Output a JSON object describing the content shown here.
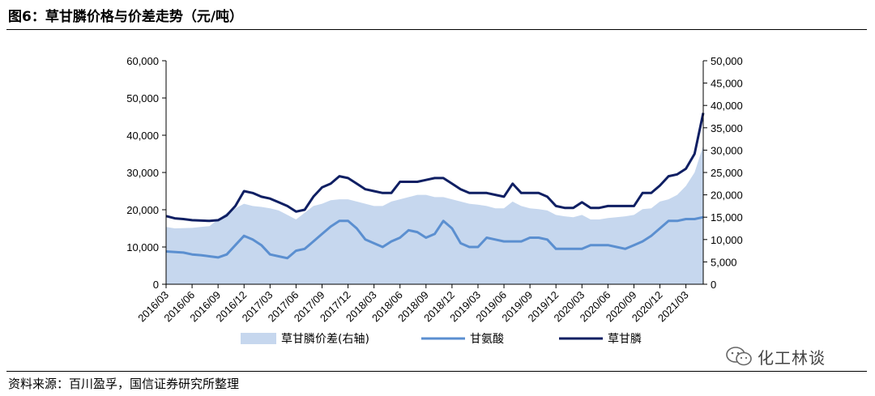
{
  "figure": {
    "title": "图6：草甘膦价格与价差走势（元/吨）",
    "source": "资料来源：百川盈孚，国信证券研究所整理",
    "watermark": "化工林谈"
  },
  "colors": {
    "spread_fill": "#c6d7ee",
    "glyphosine_line": "#5b8fd0",
    "glyphosate_line": "#0f1f63"
  },
  "chart_data": {
    "type": "line",
    "title": "草甘膦价格与价差走势（元/吨）",
    "x_tick_labels": [
      "2016/03",
      "2016/06",
      "2016/09",
      "2016/12",
      "2017/03",
      "2017/06",
      "2017/09",
      "2017/12",
      "2018/03",
      "2018/06",
      "2018/09",
      "2018/12",
      "2019/03",
      "2019/06",
      "2019/09",
      "2019/12",
      "2020/03",
      "2020/06",
      "2020/09",
      "2020/12",
      "2021/03"
    ],
    "x_range": [
      "2016-03",
      "2021-05"
    ],
    "y_left": {
      "min": 0,
      "max": 60000,
      "ticks": [
        "0",
        "10,000",
        "20,000",
        "30,000",
        "40,000",
        "50,000",
        "60,000"
      ]
    },
    "y_right": {
      "min": 0,
      "max": 50000,
      "ticks": [
        "0",
        "5,000",
        "10,000",
        "15,000",
        "20,000",
        "25,000",
        "30,000",
        "35,000",
        "40,000",
        "45,000",
        "50,000"
      ]
    },
    "grid": false,
    "legend_position": "bottom",
    "series": [
      {
        "name": "草甘膦价差(右轴)",
        "kind": "area",
        "axis": "right",
        "points": [
          [
            "2016-03",
            12800
          ],
          [
            "2016-04",
            12500
          ],
          [
            "2016-06",
            12600
          ],
          [
            "2016-08",
            13000
          ],
          [
            "2016-09",
            14500
          ],
          [
            "2016-10",
            16000
          ],
          [
            "2016-11",
            17000
          ],
          [
            "2016-12",
            18000
          ],
          [
            "2017-01",
            17500
          ],
          [
            "2017-02",
            17300
          ],
          [
            "2017-03",
            17000
          ],
          [
            "2017-04",
            16500
          ],
          [
            "2017-05",
            15500
          ],
          [
            "2017-06",
            14500
          ],
          [
            "2017-07",
            16000
          ],
          [
            "2017-08",
            17500
          ],
          [
            "2017-09",
            18000
          ],
          [
            "2017-10",
            18800
          ],
          [
            "2017-11",
            19000
          ],
          [
            "2017-12",
            19000
          ],
          [
            "2018-01",
            18500
          ],
          [
            "2018-02",
            18000
          ],
          [
            "2018-03",
            17500
          ],
          [
            "2018-04",
            17500
          ],
          [
            "2018-05",
            18500
          ],
          [
            "2018-06",
            19000
          ],
          [
            "2018-07",
            19500
          ],
          [
            "2018-08",
            20000
          ],
          [
            "2018-09",
            20000
          ],
          [
            "2018-10",
            19500
          ],
          [
            "2018-11",
            19500
          ],
          [
            "2018-12",
            19000
          ],
          [
            "2019-01",
            18500
          ],
          [
            "2019-02",
            18000
          ],
          [
            "2019-03",
            17800
          ],
          [
            "2019-04",
            17500
          ],
          [
            "2019-05",
            17000
          ],
          [
            "2019-06",
            17000
          ],
          [
            "2019-07",
            18500
          ],
          [
            "2019-08",
            17500
          ],
          [
            "2019-09",
            17000
          ],
          [
            "2019-10",
            16800
          ],
          [
            "2019-11",
            16500
          ],
          [
            "2019-12",
            15500
          ],
          [
            "2020-01",
            15200
          ],
          [
            "2020-02",
            15000
          ],
          [
            "2020-03",
            15500
          ],
          [
            "2020-04",
            14500
          ],
          [
            "2020-05",
            14500
          ],
          [
            "2020-06",
            14800
          ],
          [
            "2020-07",
            15000
          ],
          [
            "2020-08",
            15200
          ],
          [
            "2020-09",
            15500
          ],
          [
            "2020-10",
            16800
          ],
          [
            "2020-11",
            17000
          ],
          [
            "2020-12",
            18500
          ],
          [
            "2021-01",
            19000
          ],
          [
            "2021-02",
            20000
          ],
          [
            "2021-03",
            22000
          ],
          [
            "2021-04",
            25000
          ],
          [
            "2021-05",
            31000
          ]
        ]
      },
      {
        "name": "甘氨酸",
        "kind": "line",
        "axis": "left",
        "points": [
          [
            "2016-03",
            8800
          ],
          [
            "2016-05",
            8500
          ],
          [
            "2016-06",
            8000
          ],
          [
            "2016-07",
            7800
          ],
          [
            "2016-08",
            7500
          ],
          [
            "2016-09",
            7200
          ],
          [
            "2016-10",
            8000
          ],
          [
            "2016-11",
            10500
          ],
          [
            "2016-12",
            13000
          ],
          [
            "2017-01",
            12000
          ],
          [
            "2017-02",
            10500
          ],
          [
            "2017-03",
            8000
          ],
          [
            "2017-04",
            7500
          ],
          [
            "2017-05",
            7000
          ],
          [
            "2017-06",
            9000
          ],
          [
            "2017-07",
            9500
          ],
          [
            "2017-08",
            11500
          ],
          [
            "2017-09",
            13500
          ],
          [
            "2017-10",
            15500
          ],
          [
            "2017-11",
            17000
          ],
          [
            "2017-12",
            17000
          ],
          [
            "2018-01",
            15000
          ],
          [
            "2018-02",
            12000
          ],
          [
            "2018-03",
            11000
          ],
          [
            "2018-04",
            10000
          ],
          [
            "2018-05",
            11500
          ],
          [
            "2018-06",
            12500
          ],
          [
            "2018-07",
            14500
          ],
          [
            "2018-08",
            14000
          ],
          [
            "2018-09",
            12500
          ],
          [
            "2018-10",
            13500
          ],
          [
            "2018-11",
            17000
          ],
          [
            "2018-12",
            15000
          ],
          [
            "2019-01",
            11000
          ],
          [
            "2019-02",
            10000
          ],
          [
            "2019-03",
            10000
          ],
          [
            "2019-04",
            12500
          ],
          [
            "2019-05",
            12000
          ],
          [
            "2019-06",
            11500
          ],
          [
            "2019-07",
            11500
          ],
          [
            "2019-08",
            11500
          ],
          [
            "2019-09",
            12500
          ],
          [
            "2019-10",
            12500
          ],
          [
            "2019-11",
            12000
          ],
          [
            "2019-12",
            9500
          ],
          [
            "2020-01",
            9500
          ],
          [
            "2020-02",
            9500
          ],
          [
            "2020-03",
            9500
          ],
          [
            "2020-04",
            10500
          ],
          [
            "2020-05",
            10500
          ],
          [
            "2020-06",
            10500
          ],
          [
            "2020-07",
            10000
          ],
          [
            "2020-08",
            9500
          ],
          [
            "2020-09",
            10500
          ],
          [
            "2020-10",
            11500
          ],
          [
            "2020-11",
            13000
          ],
          [
            "2020-12",
            15000
          ],
          [
            "2021-01",
            17000
          ],
          [
            "2021-02",
            17000
          ],
          [
            "2021-03",
            17500
          ],
          [
            "2021-04",
            17500
          ],
          [
            "2021-05",
            18000
          ]
        ]
      },
      {
        "name": "草甘膦",
        "kind": "line",
        "axis": "left",
        "points": [
          [
            "2016-03",
            18300
          ],
          [
            "2016-04",
            17700
          ],
          [
            "2016-05",
            17500
          ],
          [
            "2016-06",
            17200
          ],
          [
            "2016-08",
            17000
          ],
          [
            "2016-09",
            17200
          ],
          [
            "2016-10",
            18500
          ],
          [
            "2016-11",
            21000
          ],
          [
            "2016-12",
            25000
          ],
          [
            "2017-01",
            24500
          ],
          [
            "2017-02",
            23500
          ],
          [
            "2017-03",
            23000
          ],
          [
            "2017-04",
            22000
          ],
          [
            "2017-05",
            21000
          ],
          [
            "2017-06",
            19500
          ],
          [
            "2017-07",
            20000
          ],
          [
            "2017-08",
            23500
          ],
          [
            "2017-09",
            26000
          ],
          [
            "2017-10",
            27000
          ],
          [
            "2017-11",
            29000
          ],
          [
            "2017-12",
            28500
          ],
          [
            "2018-01",
            27000
          ],
          [
            "2018-02",
            25500
          ],
          [
            "2018-03",
            25000
          ],
          [
            "2018-04",
            24500
          ],
          [
            "2018-05",
            24500
          ],
          [
            "2018-06",
            27500
          ],
          [
            "2018-07",
            27500
          ],
          [
            "2018-08",
            27500
          ],
          [
            "2018-09",
            28000
          ],
          [
            "2018-10",
            28500
          ],
          [
            "2018-11",
            28500
          ],
          [
            "2018-12",
            27000
          ],
          [
            "2019-01",
            25500
          ],
          [
            "2019-02",
            24500
          ],
          [
            "2019-03",
            24500
          ],
          [
            "2019-04",
            24500
          ],
          [
            "2019-05",
            24000
          ],
          [
            "2019-06",
            23500
          ],
          [
            "2019-07",
            27000
          ],
          [
            "2019-08",
            24500
          ],
          [
            "2019-09",
            24500
          ],
          [
            "2019-10",
            24500
          ],
          [
            "2019-11",
            23500
          ],
          [
            "2019-12",
            21000
          ],
          [
            "2020-01",
            20500
          ],
          [
            "2020-02",
            20500
          ],
          [
            "2020-03",
            22000
          ],
          [
            "2020-04",
            20500
          ],
          [
            "2020-05",
            20500
          ],
          [
            "2020-06",
            21000
          ],
          [
            "2020-07",
            21000
          ],
          [
            "2020-08",
            21000
          ],
          [
            "2020-09",
            21000
          ],
          [
            "2020-10",
            24500
          ],
          [
            "2020-11",
            24500
          ],
          [
            "2020-12",
            26500
          ],
          [
            "2021-01",
            29000
          ],
          [
            "2021-02",
            29500
          ],
          [
            "2021-03",
            31000
          ],
          [
            "2021-04",
            35000
          ],
          [
            "2021-05",
            46000
          ]
        ]
      }
    ]
  }
}
